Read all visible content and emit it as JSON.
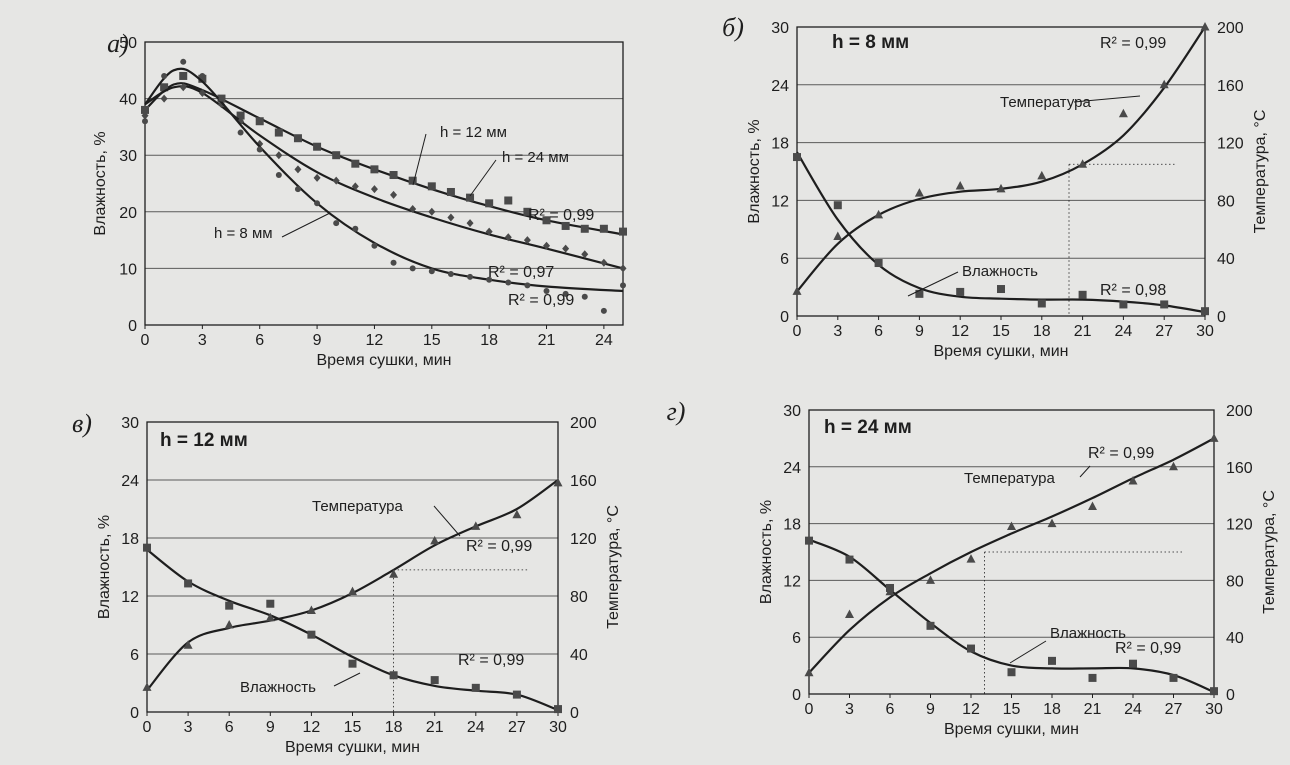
{
  "colors": {
    "ink": "#1e1e1e",
    "marker": "#4a4a4a",
    "grid": "#5a5a5a",
    "paper": "#e6e6e4"
  },
  "chart_data": [
    {
      "id": "a",
      "type": "scatter",
      "panel_label": "а)",
      "title": "",
      "xlabel": "Время сушки, мин",
      "ylabel": "Влажность, %",
      "xlim": [
        0,
        25
      ],
      "ylim": [
        0,
        50
      ],
      "xticks": [
        0,
        3,
        6,
        9,
        12,
        15,
        18,
        21,
        24
      ],
      "yticks": [
        0,
        10,
        20,
        30,
        40,
        50
      ],
      "grid": "horizontal",
      "series": [
        {
          "name": "h = 12 мм",
          "marker": "square",
          "x": [
            0,
            1,
            2,
            3,
            4,
            5,
            6,
            7,
            8,
            9,
            10,
            11,
            12,
            13,
            14,
            15,
            16,
            17,
            18,
            19,
            20,
            21,
            22,
            23,
            24,
            25
          ],
          "y": [
            38,
            42,
            44,
            43.5,
            40,
            37,
            36,
            34,
            33,
            31.5,
            30,
            28.5,
            27.5,
            26.5,
            25.5,
            24.5,
            23.5,
            22.5,
            21.5,
            22,
            20,
            18.5,
            17.5,
            17,
            17,
            16.5
          ],
          "fit": [
            [
              0,
              38
            ],
            [
              1.5,
              42.5
            ],
            [
              3,
              41.5
            ],
            [
              6,
              36.5
            ],
            [
              9,
              31.5
            ],
            [
              12,
              27.5
            ],
            [
              15,
              24
            ],
            [
              18,
              21
            ],
            [
              21,
              18.5
            ],
            [
              25,
              16
            ]
          ],
          "r2": "R² = 0,99"
        },
        {
          "name": "h = 24 мм",
          "marker": "diamond",
          "x": [
            0,
            1,
            2,
            3,
            4,
            5,
            6,
            7,
            8,
            9,
            10,
            11,
            12,
            13,
            14,
            15,
            16,
            17,
            18,
            19,
            20,
            21,
            22,
            23,
            24,
            25
          ],
          "y": [
            37,
            40,
            42,
            41,
            39,
            36,
            32,
            30,
            27.5,
            26,
            25.5,
            24.5,
            24,
            23,
            20.5,
            20,
            19,
            18,
            16.5,
            15.5,
            15,
            14,
            13.5,
            12.5,
            11,
            10
          ],
          "fit": [
            [
              0,
              39
            ],
            [
              1.5,
              42
            ],
            [
              3,
              41
            ],
            [
              6,
              33.5
            ],
            [
              9,
              27
            ],
            [
              12,
              22.5
            ],
            [
              15,
              19
            ],
            [
              18,
              16
            ],
            [
              21,
              13.5
            ],
            [
              25,
              10
            ]
          ],
          "r2": "R² = 0,97"
        },
        {
          "name": "h = 8 мм",
          "marker": "circle",
          "x": [
            0,
            1,
            2,
            3,
            4,
            5,
            6,
            7,
            8,
            9,
            10,
            11,
            12,
            13,
            14,
            15,
            16,
            17,
            18,
            19,
            20,
            21,
            22,
            23,
            24,
            25
          ],
          "y": [
            36,
            44,
            46.5,
            44,
            40,
            34,
            31,
            26.5,
            24,
            21.5,
            18,
            17,
            14,
            11,
            10,
            9.5,
            9,
            8.5,
            8,
            7.5,
            7,
            6,
            5.5,
            5,
            2.5,
            7
          ],
          "fit": [
            [
              0,
              39
            ],
            [
              1.5,
              45
            ],
            [
              3,
              43
            ],
            [
              6,
              31.5
            ],
            [
              9,
              21.5
            ],
            [
              12,
              14.5
            ],
            [
              15,
              10
            ],
            [
              18,
              8
            ],
            [
              21,
              6.8
            ],
            [
              25,
              6
            ]
          ],
          "r2": "R² = 0,99"
        }
      ]
    },
    {
      "id": "b",
      "type": "line",
      "panel_label": "б)",
      "title": "h = 8 мм",
      "xlabel": "Время сушки, мин",
      "ylabel": "Влажность, %",
      "y2label": "Температура, °C",
      "xlim": [
        0,
        30
      ],
      "ylim": [
        0,
        30
      ],
      "y2lim": [
        0,
        200
      ],
      "xticks": [
        0,
        3,
        6,
        9,
        12,
        15,
        18,
        21,
        24,
        27,
        30
      ],
      "yticks": [
        0,
        6,
        12,
        18,
        24,
        30
      ],
      "y2ticks": [
        0,
        40,
        80,
        120,
        160,
        200
      ],
      "grid": "horizontal",
      "series": [
        {
          "name": "Влажность",
          "axis": "left",
          "marker": "square",
          "x": [
            0,
            3,
            6,
            9,
            12,
            15,
            18,
            21,
            24,
            27,
            30
          ],
          "y": [
            16.5,
            11.5,
            5.5,
            2.3,
            2.5,
            2.8,
            1.3,
            2.2,
            1.2,
            1.2,
            0.5
          ],
          "fit": [
            [
              0,
              17
            ],
            [
              3,
              10
            ],
            [
              6,
              5.3
            ],
            [
              9,
              2.9
            ],
            [
              12,
              2
            ],
            [
              15,
              1.8
            ],
            [
              18,
              1.7
            ],
            [
              21,
              1.7
            ],
            [
              24,
              1.5
            ],
            [
              27,
              1.1
            ],
            [
              30,
              0.4
            ]
          ],
          "r2": "R² = 0,98"
        },
        {
          "name": "Температура",
          "axis": "right",
          "marker": "triangle",
          "x": [
            0,
            3,
            6,
            9,
            12,
            15,
            18,
            21,
            24,
            27,
            30
          ],
          "y": [
            17,
            55,
            70,
            85,
            90,
            88,
            97,
            105,
            140,
            160,
            200
          ],
          "fit": [
            [
              0,
              17
            ],
            [
              3,
              50
            ],
            [
              6,
              70
            ],
            [
              9,
              81
            ],
            [
              12,
              86
            ],
            [
              15,
              88
            ],
            [
              18,
              93
            ],
            [
              21,
              105
            ],
            [
              24,
              125
            ],
            [
              27,
              158
            ],
            [
              30,
              200
            ]
          ],
          "r2": "R² = 0,99"
        }
      ],
      "reference_x": 20
    },
    {
      "id": "v",
      "type": "line",
      "panel_label": "в)",
      "title": "h = 12 мм",
      "xlabel": "Время сушки, мин",
      "ylabel": "Влажность, %",
      "y2label": "Температура, °C",
      "xlim": [
        0,
        30
      ],
      "ylim": [
        0,
        30
      ],
      "y2lim": [
        0,
        200
      ],
      "xticks": [
        0,
        3,
        6,
        9,
        12,
        15,
        18,
        21,
        24,
        27,
        30
      ],
      "yticks": [
        0,
        6,
        12,
        18,
        24,
        30
      ],
      "y2ticks": [
        0,
        40,
        80,
        120,
        160,
        200
      ],
      "grid": "horizontal",
      "series": [
        {
          "name": "Влажность",
          "axis": "left",
          "marker": "square",
          "x": [
            0,
            3,
            6,
            9,
            12,
            15,
            18,
            21,
            24,
            27,
            30
          ],
          "y": [
            17,
            13.3,
            11,
            11.2,
            8,
            5,
            3.8,
            3.3,
            2.5,
            1.8,
            0.3
          ],
          "fit": [
            [
              0,
              16.8
            ],
            [
              3,
              13.5
            ],
            [
              6,
              11.5
            ],
            [
              9,
              10
            ],
            [
              12,
              8
            ],
            [
              15,
              5.7
            ],
            [
              18,
              3.8
            ],
            [
              21,
              2.7
            ],
            [
              24,
              2.2
            ],
            [
              27,
              1.8
            ],
            [
              30,
              0.2
            ]
          ],
          "r2": "R² = 0,99"
        },
        {
          "name": "Температура",
          "axis": "right",
          "marker": "triangle",
          "x": [
            0,
            3,
            6,
            9,
            12,
            15,
            18,
            21,
            24,
            27,
            30
          ],
          "y": [
            17,
            46,
            60,
            65,
            70,
            83,
            95,
            118,
            128,
            136,
            158
          ],
          "fit": [
            [
              0,
              15
            ],
            [
              3,
              48
            ],
            [
              6,
              58
            ],
            [
              9,
              63
            ],
            [
              12,
              70
            ],
            [
              15,
              82
            ],
            [
              18,
              98
            ],
            [
              21,
              115
            ],
            [
              24,
              128
            ],
            [
              27,
              140
            ],
            [
              30,
              160
            ]
          ],
          "r2": "R² = 0,99"
        }
      ],
      "reference_x": 18
    },
    {
      "id": "g",
      "type": "line",
      "panel_label": "г)",
      "title": "h = 24 мм",
      "xlabel": "Время сушки, мин",
      "ylabel": "Влажность, %",
      "y2label": "Температура, °C",
      "xlim": [
        0,
        30
      ],
      "ylim": [
        0,
        30
      ],
      "y2lim": [
        0,
        200
      ],
      "xticks": [
        0,
        3,
        6,
        9,
        12,
        15,
        18,
        21,
        24,
        27,
        30
      ],
      "yticks": [
        0,
        6,
        12,
        18,
        24,
        30
      ],
      "y2ticks": [
        0,
        40,
        80,
        120,
        160,
        200
      ],
      "grid": "horizontal",
      "series": [
        {
          "name": "Влажность",
          "axis": "left",
          "marker": "square",
          "x": [
            0,
            3,
            6,
            9,
            12,
            15,
            18,
            21,
            24,
            27,
            30
          ],
          "y": [
            16.2,
            14.2,
            11.2,
            7.2,
            4.8,
            2.3,
            3.5,
            1.7,
            3.2,
            1.7,
            0.3
          ],
          "fit": [
            [
              0,
              16.3
            ],
            [
              3,
              14.5
            ],
            [
              6,
              11
            ],
            [
              9,
              7.5
            ],
            [
              12,
              4.5
            ],
            [
              15,
              3
            ],
            [
              18,
              2.7
            ],
            [
              21,
              2.7
            ],
            [
              24,
              2.7
            ],
            [
              27,
              2
            ],
            [
              30,
              0.2
            ]
          ],
          "r2": "R² = 0,99"
        },
        {
          "name": "Температура",
          "axis": "right",
          "marker": "triangle",
          "x": [
            0,
            3,
            6,
            9,
            12,
            15,
            18,
            21,
            24,
            27,
            30
          ],
          "y": [
            15,
            56,
            72,
            80,
            95,
            118,
            120,
            132,
            150,
            160,
            180
          ],
          "fit": [
            [
              0,
              15
            ],
            [
              3,
              45
            ],
            [
              6,
              68
            ],
            [
              9,
              85
            ],
            [
              12,
              100
            ],
            [
              15,
              113
            ],
            [
              18,
              125
            ],
            [
              21,
              138
            ],
            [
              24,
              152
            ],
            [
              27,
              165
            ],
            [
              30,
              180
            ]
          ],
          "r2": "R² = 0,99"
        }
      ],
      "reference_x": 13
    }
  ]
}
